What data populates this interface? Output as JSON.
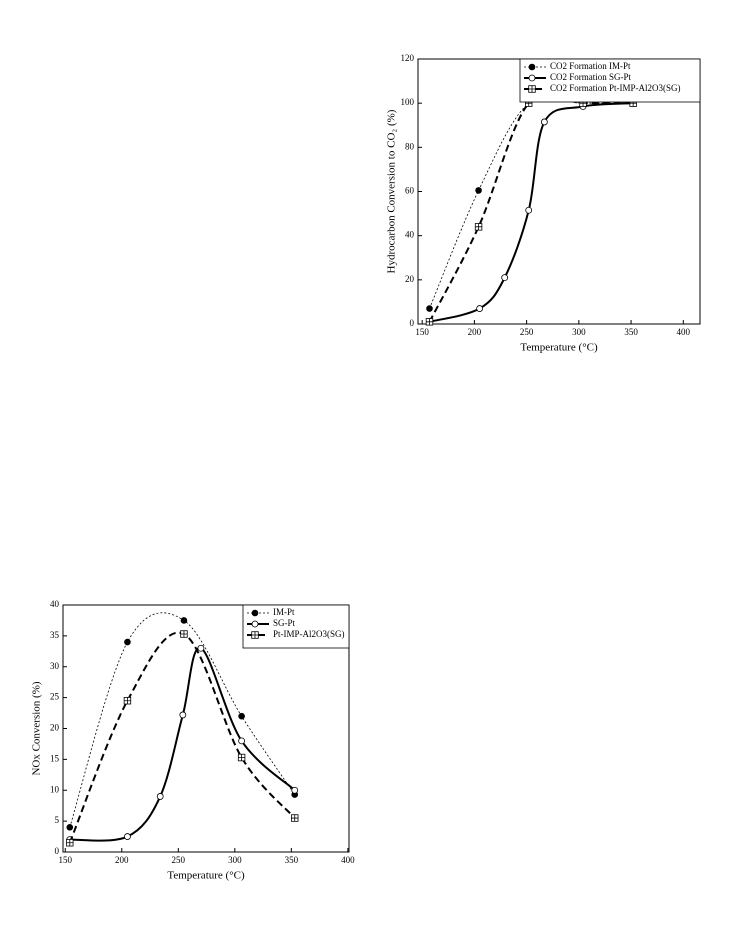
{
  "chart_data": [
    {
      "type": "line",
      "x_label": "Temperature (°C)",
      "y_label": "Hydrocarbon Conversion to CO₂ (%)",
      "xlim": [
        146,
        416
      ],
      "xticks": [
        150,
        200,
        250,
        300,
        350,
        400
      ],
      "ylim": [
        0,
        120
      ],
      "yticks": [
        0,
        20,
        40,
        60,
        80,
        100,
        120
      ],
      "legend": "top-right",
      "series": [
        {
          "name": "CO2 Formation IM-Pt",
          "color": "#000",
          "dash": "dotted",
          "marker": "filled-circle",
          "x": [
            157,
            204,
            252,
            304,
            352
          ],
          "values": [
            7,
            60.5,
            100,
            100,
            100
          ]
        },
        {
          "name": "CO2 Formation SG-Pt",
          "color": "#000",
          "dash": "solid",
          "marker": "open-circle",
          "x": [
            157,
            205,
            229,
            252,
            267,
            304,
            352
          ],
          "values": [
            1,
            7,
            21,
            51.5,
            91.5,
            98.5,
            100
          ]
        },
        {
          "name": "CO2 Formation Pt-IMP-Al2O3(SG)",
          "color": "#000",
          "dash": "dashed",
          "marker": "boxed-plus",
          "x": [
            157,
            204,
            252,
            304,
            352
          ],
          "values": [
            1,
            44,
            100,
            100,
            100
          ]
        }
      ]
    },
    {
      "type": "line",
      "x_label": "Temperature (°C)",
      "y_label": "NOx Conversion (%)",
      "xlim": [
        148,
        401
      ],
      "xticks": [
        150,
        200,
        250,
        300,
        350,
        400
      ],
      "ylim": [
        0,
        40
      ],
      "yticks": [
        0,
        5,
        10,
        15,
        20,
        25,
        30,
        35,
        40
      ],
      "legend": "top-right",
      "series": [
        {
          "name": "IM-Pt",
          "color": "#000",
          "dash": "dotted",
          "marker": "filled-circle",
          "x": [
            154,
            205,
            255,
            306,
            353
          ],
          "values": [
            4,
            34,
            37.5,
            22,
            9.3
          ]
        },
        {
          "name": "SG-Pt",
          "color": "#000",
          "dash": "solid",
          "marker": "open-circle",
          "x": [
            154,
            205,
            234,
            254,
            270,
            306,
            353
          ],
          "values": [
            2,
            2.5,
            9,
            22.2,
            33,
            18,
            10
          ]
        },
        {
          "name": "Pt-IMP-Al2O3(SG)",
          "color": "#000",
          "dash": "dashed",
          "marker": "boxed-plus",
          "x": [
            154,
            205,
            255,
            306,
            353
          ],
          "values": [
            1.5,
            24.5,
            35.3,
            15.3,
            5.5
          ]
        }
      ]
    }
  ]
}
